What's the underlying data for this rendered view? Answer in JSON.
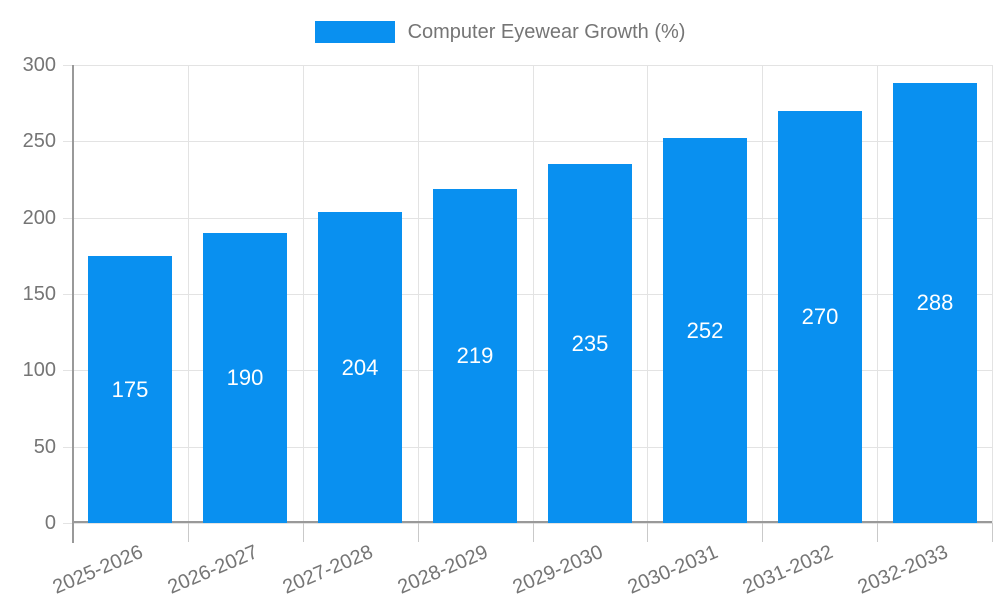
{
  "chart": {
    "legend": {
      "label": "Computer Eyewear Growth (%)"
    }
  },
  "colors": {
    "bar": "#0990f0",
    "axis": "#999999",
    "grid": "#e3e3e3",
    "tick": "#c9c9c9",
    "tick_text": "#757575",
    "value_text": "#ffffff",
    "background": "#ffffff"
  },
  "chart_data": {
    "type": "bar",
    "title": "Computer Eyewear Growth (%)",
    "series_name": "Computer Eyewear Growth (%)",
    "categories": [
      "2025-2026",
      "2026-2027",
      "2027-2028",
      "2028-2029",
      "2029-2030",
      "2030-2031",
      "2031-2032",
      "2032-2033"
    ],
    "values": [
      175,
      190,
      204,
      219,
      235,
      252,
      270,
      288
    ],
    "xlabel": "",
    "ylabel": "",
    "ylim": [
      0,
      300
    ],
    "y_ticks": [
      0,
      50,
      100,
      150,
      200,
      250,
      300
    ],
    "grid": true,
    "legend_position": "top-center",
    "value_labels_position": "inside-middle"
  }
}
